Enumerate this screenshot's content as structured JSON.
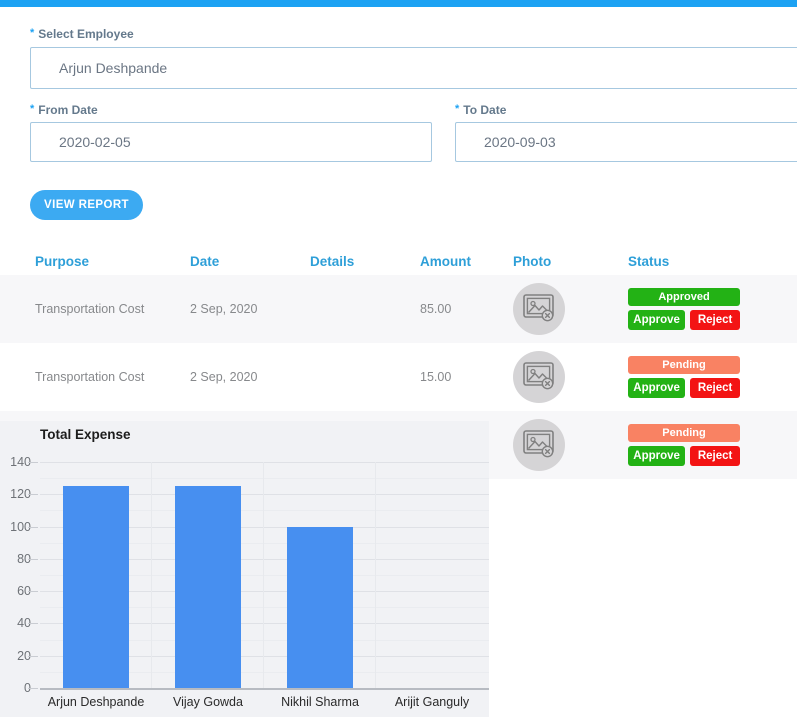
{
  "colors": {
    "topbar": "#1da2f3",
    "accent": "#2e9fd8",
    "green": "#23b215",
    "red": "#f31414",
    "pending": "#f98263",
    "bar_blue": "#478ff0"
  },
  "form": {
    "required_mark": "*",
    "select_employee": {
      "label": "Select Employee",
      "value": "Arjun Deshpande"
    },
    "from_date": {
      "label": "From Date",
      "value": "2020-02-05"
    },
    "to_date": {
      "label": "To Date",
      "value": "2020-09-03"
    },
    "view_report_label": "VIEW REPORT"
  },
  "table": {
    "headers": {
      "purpose": "Purpose",
      "date": "Date",
      "details": "Details",
      "amount": "Amount",
      "photo": "Photo",
      "status": "Status"
    },
    "rows": [
      {
        "purpose": "Transportation Cost",
        "date": "2 Sep, 2020",
        "details": "",
        "amount": "85.00",
        "photo_icon": "broken-image-icon",
        "status": "Approved",
        "approve_label": "Approve",
        "reject_label": "Reject"
      },
      {
        "purpose": "Transportation Cost",
        "date": "2 Sep, 2020",
        "details": "",
        "amount": "15.00",
        "photo_icon": "broken-image-icon",
        "status": "Pending",
        "approve_label": "Approve",
        "reject_label": "Reject"
      },
      {
        "purpose": "",
        "date": "",
        "details": "",
        "amount": "",
        "photo_icon": "broken-image-icon",
        "status": "Pending",
        "approve_label": "Approve",
        "reject_label": "Reject"
      }
    ],
    "status_colors": {
      "Approved": "#23b215",
      "Pending": "#f98263"
    }
  },
  "chart_data": {
    "type": "bar",
    "title": "Total Expense",
    "categories": [
      "Arjun Deshpande",
      "Vijay Gowda",
      "Nikhil Sharma",
      "Arijit Ganguly"
    ],
    "values": [
      125,
      125,
      100,
      0
    ],
    "xlabel": "",
    "ylabel": "",
    "ylim": [
      0,
      140
    ],
    "ytick_step": 20,
    "minor_tick_step": 10,
    "grid": "horizontal",
    "legend": "none",
    "bar_color": "#478ff0"
  }
}
